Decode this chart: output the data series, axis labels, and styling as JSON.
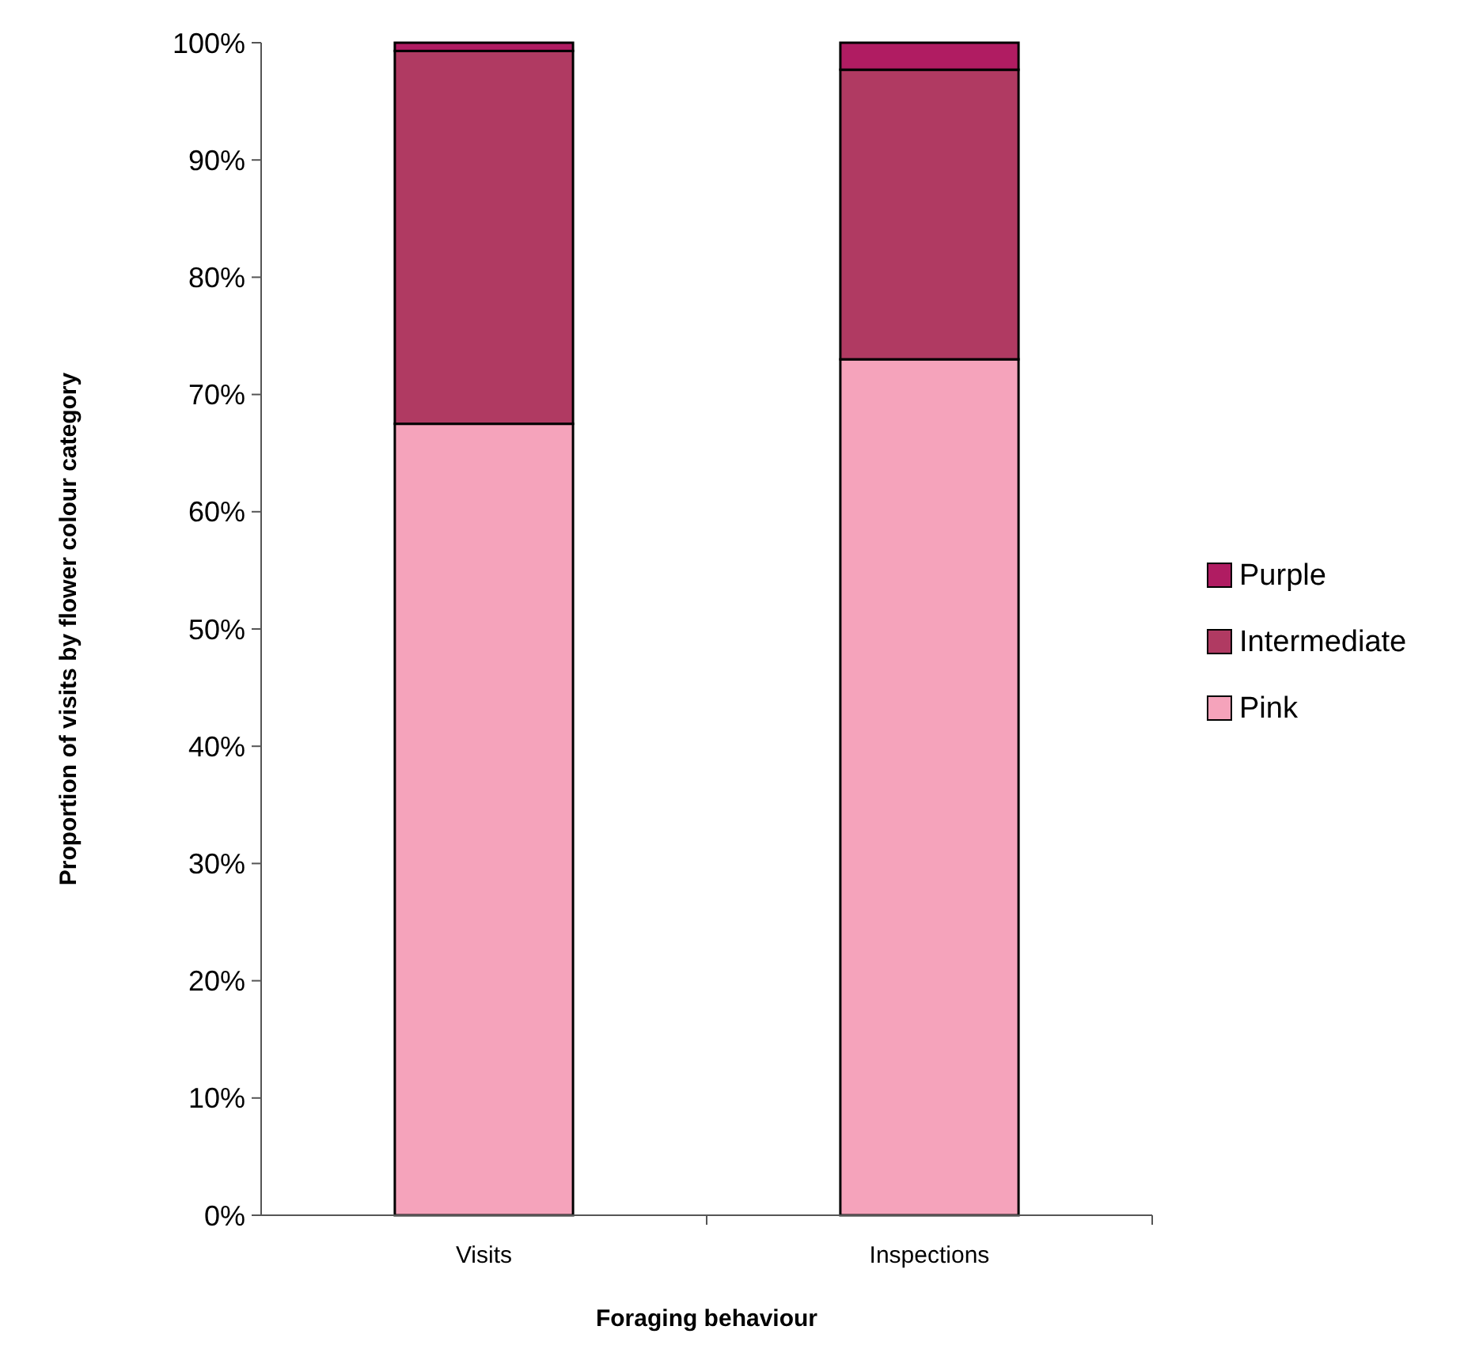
{
  "chart_data": {
    "type": "bar",
    "stacked": true,
    "xlabel": "Foraging behaviour",
    "ylabel": "Proportion of visits by flower colour category",
    "categories": [
      "Visits",
      "Inspections"
    ],
    "series": [
      {
        "name": "Pink",
        "color": "#f5a3bb",
        "values": [
          67.5,
          73.0
        ]
      },
      {
        "name": "Intermediate",
        "color": "#b03a62",
        "values": [
          31.8,
          24.7
        ]
      },
      {
        "name": "Purple",
        "color": "#b01c62",
        "values": [
          0.7,
          2.3
        ]
      }
    ],
    "ylim": [
      0,
      100
    ],
    "yticks": [
      {
        "value": 0,
        "label": "0%"
      },
      {
        "value": 10,
        "label": "10%"
      },
      {
        "value": 20,
        "label": "20%"
      },
      {
        "value": 30,
        "label": "30%"
      },
      {
        "value": 40,
        "label": "40%"
      },
      {
        "value": 50,
        "label": "50%"
      },
      {
        "value": 60,
        "label": "60%"
      },
      {
        "value": 70,
        "label": "70%"
      },
      {
        "value": 80,
        "label": "80%"
      },
      {
        "value": 90,
        "label": "90%"
      },
      {
        "value": 100,
        "label": "100%"
      }
    ],
    "legend": "right",
    "grid": false
  }
}
